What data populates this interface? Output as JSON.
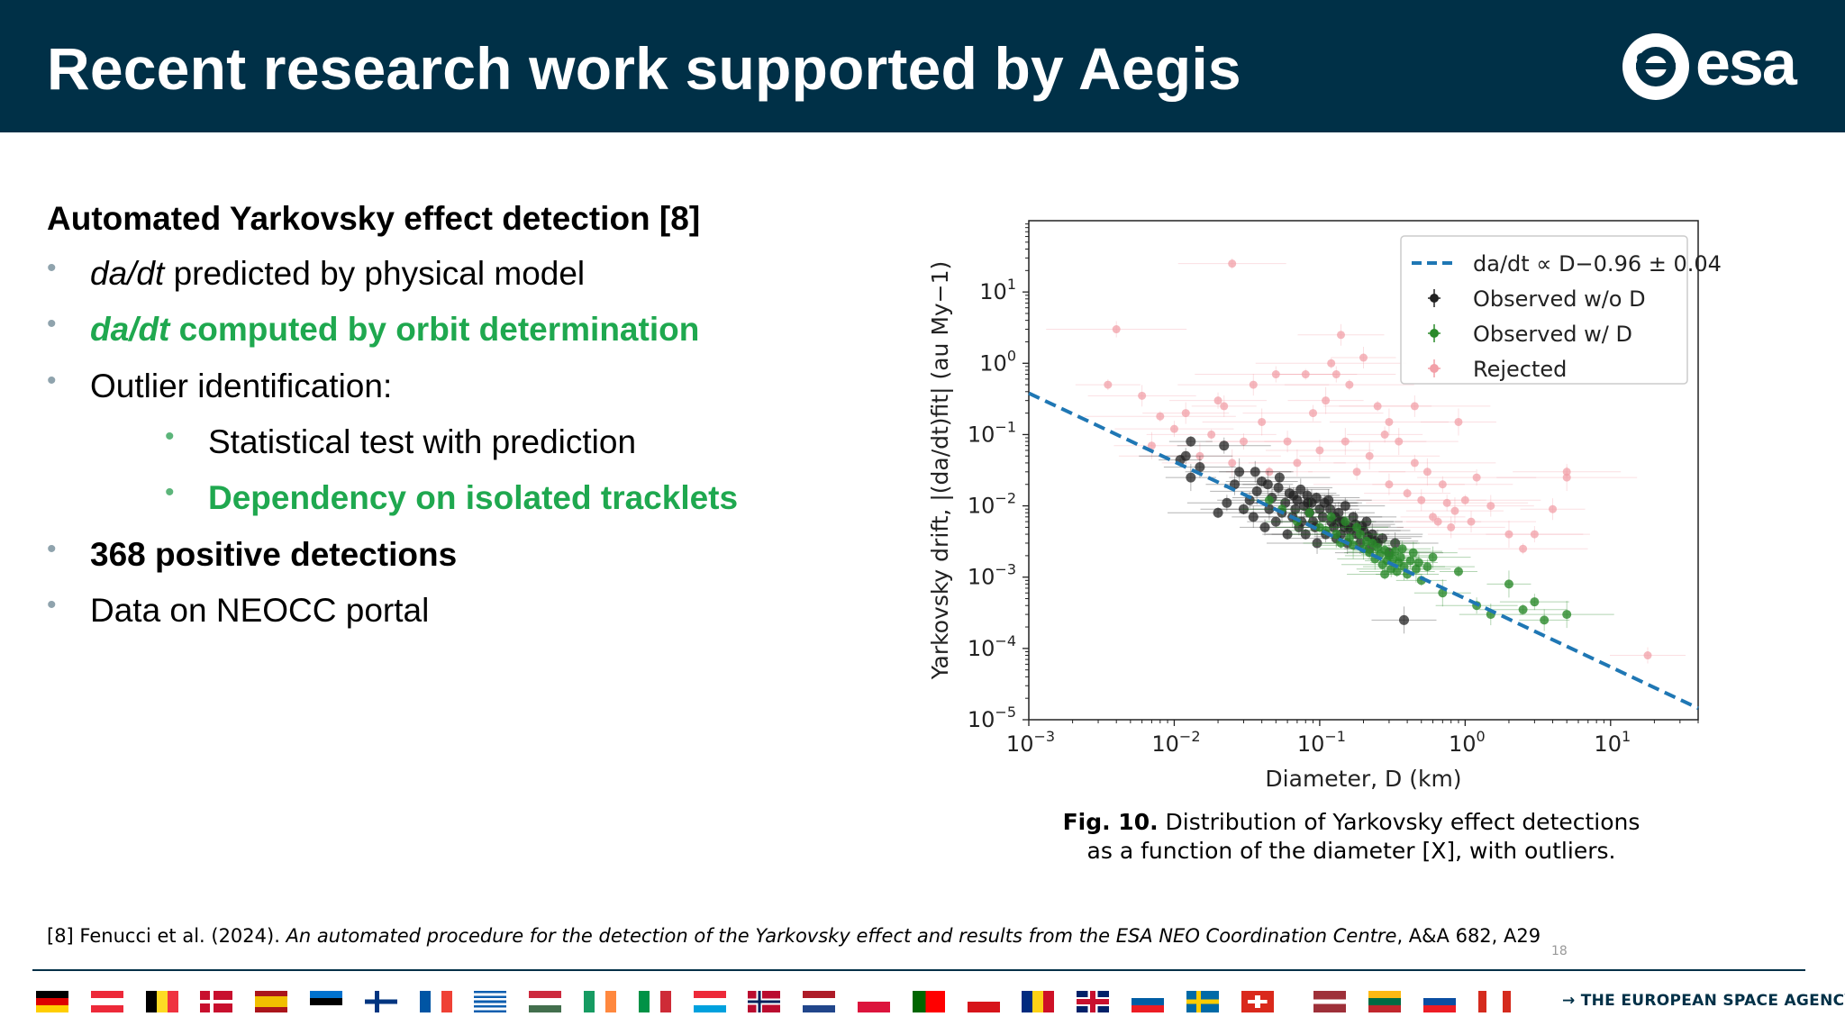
{
  "header": {
    "title": "Recent research work supported by Aegis",
    "logo_text": "esa",
    "colors": {
      "background": "#003047",
      "text": "#ffffff"
    }
  },
  "content": {
    "heading": "Automated Yarkovsky effect detection [8]",
    "bullets": [
      {
        "text_a": "da/dt",
        "text_b": " predicted by physical model",
        "style": "normal"
      },
      {
        "text_a": "da/dt",
        "text_b": " computed by orbit determination",
        "style": "green"
      },
      {
        "text_a": "",
        "text_b": "Outlier identification:",
        "style": "normal"
      },
      {
        "text_a": "",
        "text_b": "Statistical test with prediction",
        "style": "normal",
        "level": 2
      },
      {
        "text_a": "",
        "text_b": "Dependency on isolated tracklets",
        "style": "green",
        "level": 2
      },
      {
        "text_a": "",
        "text_b": "368 positive detections",
        "style": "bold"
      },
      {
        "text_a": "",
        "text_b": "Data on NEOCC portal",
        "style": "normal"
      }
    ],
    "accent_green": "#1fa84f"
  },
  "chart_data": {
    "type": "scatter",
    "xlabel": "Diameter, D (km)",
    "ylabel": "Yarkovsky drift, |(da/dt)fit| (au My−1)",
    "x_scale": "log",
    "y_scale": "log",
    "xlim": [
      0.001,
      40
    ],
    "ylim": [
      1e-05,
      100
    ],
    "x_ticks": [
      "10−3",
      "10−2",
      "10−1",
      "100",
      "101"
    ],
    "y_ticks": [
      "101",
      "100",
      "10−1",
      "10−2",
      "10−3",
      "10−4",
      "10−5"
    ],
    "legend_position": "top-right",
    "legend": [
      {
        "label": "da/dt ∝ D−0.96 ± 0.04",
        "color": "#1f77b4",
        "kind": "dashed-line"
      },
      {
        "label": "Observed w/o D",
        "color": "#222222",
        "kind": "marker"
      },
      {
        "label": "Observed w/ D",
        "color": "#2a8a2a",
        "kind": "marker"
      },
      {
        "label": "Rejected",
        "color": "#f2a0a8",
        "kind": "marker"
      }
    ],
    "fit_line": {
      "slope": -0.96,
      "intercept_log10": -3.3
    },
    "series": [
      {
        "name": "Observed w/o D",
        "color": "#222222",
        "points": [
          [
            0.011,
            0.044
          ],
          [
            0.012,
            0.05
          ],
          [
            0.015,
            0.035
          ],
          [
            0.013,
            0.025
          ],
          [
            0.02,
            0.008
          ],
          [
            0.023,
            0.011
          ],
          [
            0.026,
            0.02
          ],
          [
            0.028,
            0.03
          ],
          [
            0.03,
            0.009
          ],
          [
            0.033,
            0.012
          ],
          [
            0.035,
            0.007
          ],
          [
            0.037,
            0.016
          ],
          [
            0.04,
            0.022
          ],
          [
            0.042,
            0.005
          ],
          [
            0.045,
            0.009
          ],
          [
            0.047,
            0.013
          ],
          [
            0.05,
            0.006
          ],
          [
            0.052,
            0.018
          ],
          [
            0.055,
            0.008
          ],
          [
            0.058,
            0.011
          ],
          [
            0.06,
            0.004
          ],
          [
            0.062,
            0.015
          ],
          [
            0.065,
            0.007
          ],
          [
            0.068,
            0.009
          ],
          [
            0.07,
            0.012
          ],
          [
            0.072,
            0.005
          ],
          [
            0.075,
            0.006
          ],
          [
            0.078,
            0.01
          ],
          [
            0.08,
            0.004
          ],
          [
            0.082,
            0.014
          ],
          [
            0.085,
            0.008
          ],
          [
            0.088,
            0.011
          ],
          [
            0.09,
            0.006
          ],
          [
            0.093,
            0.005
          ],
          [
            0.096,
            0.003
          ],
          [
            0.1,
            0.009
          ],
          [
            0.105,
            0.007
          ],
          [
            0.11,
            0.004
          ],
          [
            0.115,
            0.012
          ],
          [
            0.12,
            0.006
          ],
          [
            0.125,
            0.005
          ],
          [
            0.13,
            0.0035
          ],
          [
            0.135,
            0.008
          ],
          [
            0.14,
            0.004
          ],
          [
            0.145,
            0.006
          ],
          [
            0.15,
            0.01
          ],
          [
            0.155,
            0.003
          ],
          [
            0.16,
            0.005
          ],
          [
            0.17,
            0.007
          ],
          [
            0.18,
            0.004
          ],
          [
            0.19,
            0.003
          ],
          [
            0.2,
            0.0045
          ],
          [
            0.21,
            0.006
          ],
          [
            0.22,
            0.0025
          ],
          [
            0.23,
            0.004
          ],
          [
            0.25,
            0.003
          ],
          [
            0.27,
            0.0035
          ],
          [
            0.3,
            0.0022
          ],
          [
            0.33,
            0.003
          ],
          [
            0.38,
            0.00025
          ],
          [
            0.013,
            0.08
          ],
          [
            0.022,
            0.07
          ],
          [
            0.036,
            0.03
          ],
          [
            0.044,
            0.02
          ],
          [
            0.053,
            0.025
          ],
          [
            0.066,
            0.014
          ],
          [
            0.074,
            0.017
          ],
          [
            0.083,
            0.011
          ],
          [
            0.095,
            0.013
          ],
          [
            0.108,
            0.011
          ],
          [
            0.118,
            0.009
          ],
          [
            0.128,
            0.007
          ],
          [
            0.138,
            0.006
          ],
          [
            0.148,
            0.005
          ],
          [
            0.162,
            0.0045
          ],
          [
            0.176,
            0.0055
          ],
          [
            0.195,
            0.0052
          ],
          [
            0.215,
            0.0037
          ],
          [
            0.24,
            0.0032
          ]
        ]
      },
      {
        "name": "Observed w/ D",
        "color": "#2a8a2a",
        "points": [
          [
            0.045,
            0.012
          ],
          [
            0.055,
            0.009
          ],
          [
            0.07,
            0.006
          ],
          [
            0.085,
            0.008
          ],
          [
            0.1,
            0.005
          ],
          [
            0.11,
            0.0045
          ],
          [
            0.12,
            0.007
          ],
          [
            0.13,
            0.004
          ],
          [
            0.14,
            0.003
          ],
          [
            0.15,
            0.006
          ],
          [
            0.16,
            0.0035
          ],
          [
            0.17,
            0.0028
          ],
          [
            0.18,
            0.005
          ],
          [
            0.19,
            0.004
          ],
          [
            0.2,
            0.0025
          ],
          [
            0.21,
            0.0032
          ],
          [
            0.22,
            0.0022
          ],
          [
            0.23,
            0.003
          ],
          [
            0.24,
            0.0018
          ],
          [
            0.25,
            0.0026
          ],
          [
            0.26,
            0.0021
          ],
          [
            0.27,
            0.0015
          ],
          [
            0.28,
            0.0024
          ],
          [
            0.29,
            0.0017
          ],
          [
            0.3,
            0.002
          ],
          [
            0.31,
            0.0013
          ],
          [
            0.32,
            0.0018
          ],
          [
            0.33,
            0.0023
          ],
          [
            0.34,
            0.0012
          ],
          [
            0.35,
            0.0016
          ],
          [
            0.36,
            0.0019
          ],
          [
            0.38,
            0.0014
          ],
          [
            0.4,
            0.0011
          ],
          [
            0.42,
            0.0017
          ],
          [
            0.44,
            0.0022
          ],
          [
            0.46,
            0.0013
          ],
          [
            0.5,
            0.0009
          ],
          [
            0.55,
            0.0014
          ],
          [
            0.6,
            0.0019
          ],
          [
            0.7,
            0.0006
          ],
          [
            0.9,
            0.0012
          ],
          [
            1.2,
            0.0004
          ],
          [
            1.5,
            0.0003
          ],
          [
            2.0,
            0.0008
          ],
          [
            2.5,
            0.00035
          ],
          [
            3.0,
            0.00045
          ],
          [
            3.5,
            0.00025
          ],
          [
            5.0,
            0.0003
          ],
          [
            0.28,
            0.0011
          ],
          [
            0.37,
            0.0025
          ],
          [
            0.48,
            0.0016
          ]
        ]
      },
      {
        "name": "Rejected",
        "color": "#f2a0a8",
        "points": [
          [
            0.0035,
            0.5
          ],
          [
            0.004,
            3.0
          ],
          [
            0.006,
            0.35
          ],
          [
            0.007,
            0.07
          ],
          [
            0.008,
            0.18
          ],
          [
            0.01,
            0.12
          ],
          [
            0.012,
            0.2
          ],
          [
            0.015,
            0.05
          ],
          [
            0.018,
            0.1
          ],
          [
            0.02,
            0.3
          ],
          [
            0.022,
            0.25
          ],
          [
            0.025,
            0.04
          ],
          [
            0.025,
            25
          ],
          [
            0.03,
            0.08
          ],
          [
            0.035,
            0.5
          ],
          [
            0.04,
            0.15
          ],
          [
            0.045,
            0.03
          ],
          [
            0.05,
            0.7
          ],
          [
            0.06,
            0.08
          ],
          [
            0.07,
            0.04
          ],
          [
            0.08,
            0.7
          ],
          [
            0.09,
            0.2
          ],
          [
            0.1,
            0.06
          ],
          [
            0.11,
            0.3
          ],
          [
            0.12,
            1.0
          ],
          [
            0.13,
            0.7
          ],
          [
            0.14,
            2.5
          ],
          [
            0.15,
            0.08
          ],
          [
            0.16,
            0.5
          ],
          [
            0.18,
            0.03
          ],
          [
            0.2,
            1.2
          ],
          [
            0.22,
            0.05
          ],
          [
            0.25,
            0.25
          ],
          [
            0.28,
            0.1
          ],
          [
            0.3,
            0.02
          ],
          [
            0.35,
            0.08
          ],
          [
            0.4,
            0.015
          ],
          [
            0.45,
            0.04
          ],
          [
            0.5,
            0.012
          ],
          [
            0.55,
            0.03
          ],
          [
            0.6,
            0.007
          ],
          [
            0.7,
            0.02
          ],
          [
            0.8,
            0.005
          ],
          [
            0.9,
            0.15
          ],
          [
            1.0,
            0.012
          ],
          [
            1.2,
            0.025
          ],
          [
            1.5,
            0.01
          ],
          [
            2.0,
            0.004
          ],
          [
            2.5,
            0.0025
          ],
          [
            3.0,
            0.004
          ],
          [
            4.0,
            0.009
          ],
          [
            5.0,
            0.025
          ],
          [
            5.0,
            0.03
          ],
          [
            18,
            8e-05
          ],
          [
            0.45,
            0.25
          ],
          [
            0.3,
            0.15
          ],
          [
            0.65,
            0.006
          ],
          [
            0.75,
            0.011
          ],
          [
            1.1,
            0.006
          ],
          [
            0.85,
            0.0085
          ]
        ]
      }
    ]
  },
  "caption": {
    "fig_label": "Fig. 10.",
    "line1": " Distribution of Yarkovsky effect detections",
    "line2": "as a function of the diameter [X], with outliers."
  },
  "reference": {
    "prefix": "[8] Fenucci et al. (2024). ",
    "title": "An automated procedure for the detection of the Yarkovsky effect and results from the ESA NEO Coordination Centre",
    "suffix": ", A&A 682, A29"
  },
  "slide_number": "18",
  "footer": {
    "agency": "→ THE EUROPEAN SPACE AGENCY",
    "flags": [
      "germany",
      "austria",
      "belgium",
      "denmark",
      "spain",
      "estonia",
      "finland",
      "france",
      "greece",
      "hungary",
      "ireland",
      "italy",
      "luxembourg",
      "norway",
      "netherlands",
      "poland",
      "portugal",
      "czechia",
      "romania",
      "united-kingdom",
      "slovenia",
      "sweden",
      "switzerland",
      "latvia",
      "lithuania",
      "slovakia",
      "canada"
    ]
  }
}
